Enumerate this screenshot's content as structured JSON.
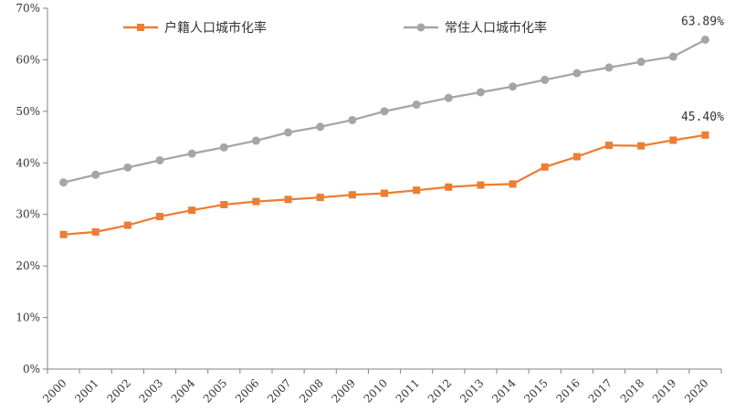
{
  "chart_data": {
    "type": "line",
    "title": "",
    "xlabel": "",
    "ylabel": "",
    "ylim": [
      0,
      70
    ],
    "y_ticks": [
      0,
      10,
      20,
      30,
      40,
      50,
      60,
      70
    ],
    "y_tick_suffix": "%",
    "grid": false,
    "legend_position": "top",
    "categories": [
      "2000",
      "2001",
      "2002",
      "2003",
      "2004",
      "2005",
      "2006",
      "2007",
      "2008",
      "2009",
      "2010",
      "2011",
      "2012",
      "2013",
      "2014",
      "2015",
      "2016",
      "2017",
      "2018",
      "2019",
      "2020"
    ],
    "series": [
      {
        "name": "户籍人口城市化率",
        "color": "#ed7d31",
        "marker": "square",
        "values": [
          26.1,
          26.6,
          27.9,
          29.6,
          30.8,
          31.9,
          32.5,
          32.9,
          33.3,
          33.8,
          34.1,
          34.7,
          35.3,
          35.7,
          35.9,
          39.2,
          41.2,
          43.4,
          43.3,
          44.4,
          45.4
        ],
        "end_label": "45.40%"
      },
      {
        "name": "常住人口城市化率",
        "color": "#a5a5a5",
        "marker": "circle",
        "values": [
          36.2,
          37.7,
          39.1,
          40.5,
          41.8,
          43.0,
          44.3,
          45.9,
          47.0,
          48.3,
          50.0,
          51.3,
          52.6,
          53.7,
          54.8,
          56.1,
          57.4,
          58.5,
          59.6,
          60.6,
          63.89
        ],
        "end_label": "63.89%"
      }
    ]
  }
}
